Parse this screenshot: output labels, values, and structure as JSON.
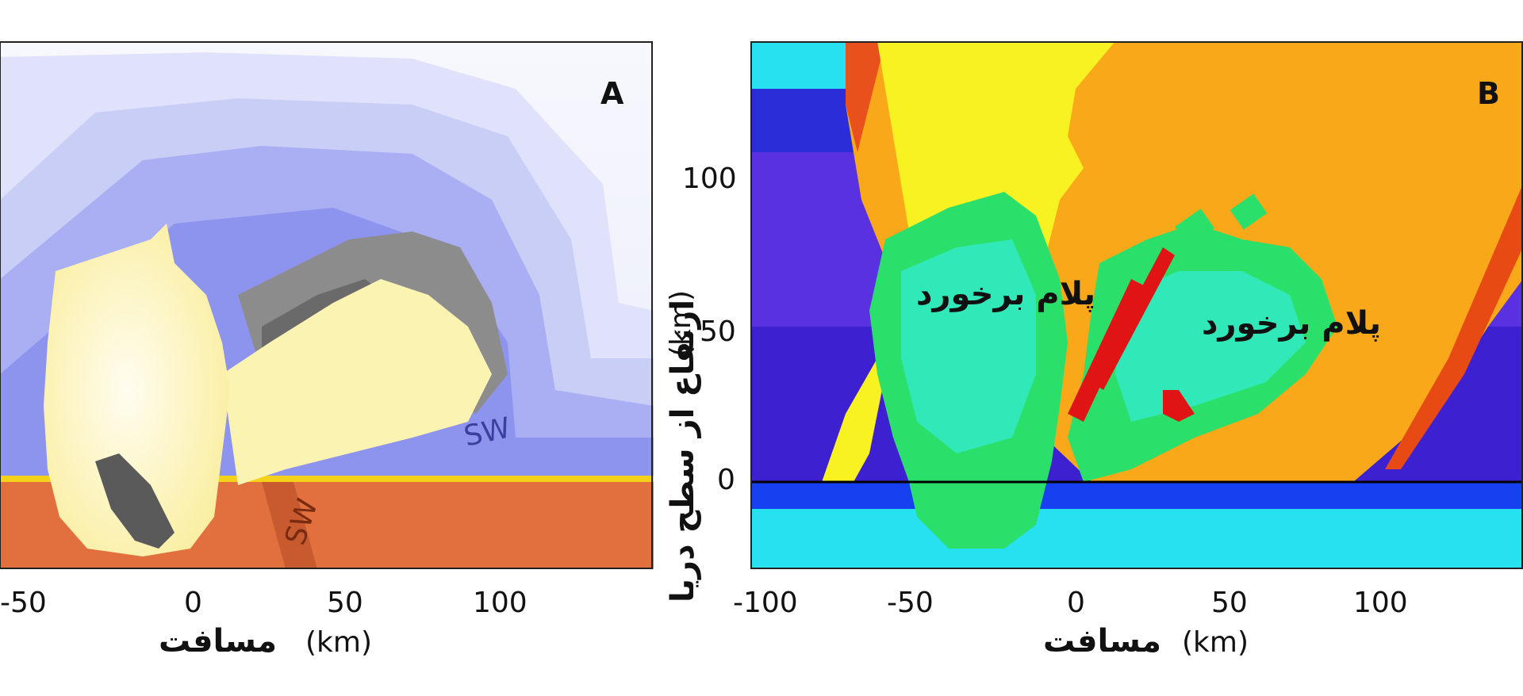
{
  "chart_data": [
    {
      "type": "heatmap",
      "panel_label": "A",
      "x_ticks": [
        -50,
        0,
        50,
        100
      ],
      "xlabel_fa": "مسافت",
      "xunit": "(km)",
      "annotations": [
        "SW",
        "SW"
      ],
      "colors": {
        "ground": "#e2703e",
        "shock_wave": "#7a80e6",
        "plume": "#fbf3b2",
        "gray_zone": "#8c8c8c",
        "surface_line": "#f5d21a"
      }
    },
    {
      "type": "heatmap",
      "panel_label": "B",
      "x_ticks": [
        -100,
        -50,
        0,
        50,
        100
      ],
      "y_ticks": [
        0,
        50,
        100
      ],
      "xlabel_fa": "مسافت",
      "xunit": "(km)",
      "ylabel_fa": "ارتفاع از سطح دریا",
      "yunit": "(km)",
      "annotations": [
        "پلام برخورد",
        "پلام برخورد"
      ],
      "sea_level": 0,
      "colors": {
        "sky": "#3d21d0",
        "upper_band": "#5a31e0",
        "water": "#27e0f0",
        "sea_dark": "#1740f0",
        "hot_yellow": "#f8f222",
        "hot_orange": "#f8a818",
        "plume_green": "#2be06a",
        "plume_cyan": "#30e8b8",
        "red": "#e01414"
      }
    }
  ]
}
